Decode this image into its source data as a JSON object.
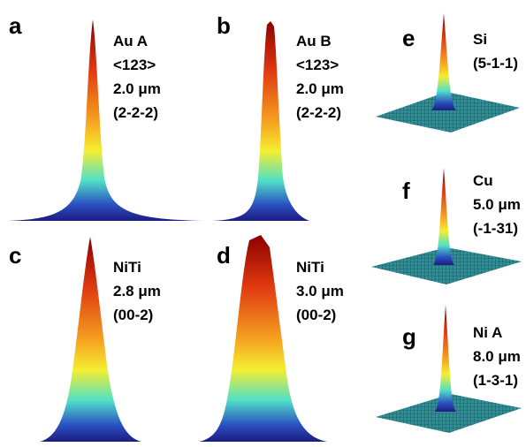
{
  "panels": [
    {
      "letter": "a",
      "lines": [
        "Au A",
        "<123>",
        "2.0 μm",
        "(2-2-2)"
      ]
    },
    {
      "letter": "b",
      "lines": [
        "Au B",
        "<123>",
        "2.0 μm",
        "(2-2-2)"
      ]
    },
    {
      "letter": "c",
      "lines": [
        "NiTi",
        "2.8 μm",
        "(00-2)"
      ]
    },
    {
      "letter": "d",
      "lines": [
        "NiTi",
        "3.0 μm",
        "(00-2)"
      ]
    },
    {
      "letter": "e",
      "lines": [
        "Si",
        "(5-1-1)"
      ]
    },
    {
      "letter": "f",
      "lines": [
        "Cu",
        "5.0 μm",
        "(-1-31)"
      ]
    },
    {
      "letter": "g",
      "lines": [
        "Ni A",
        "8.0 μm",
        "(1-3-1)"
      ]
    }
  ]
}
